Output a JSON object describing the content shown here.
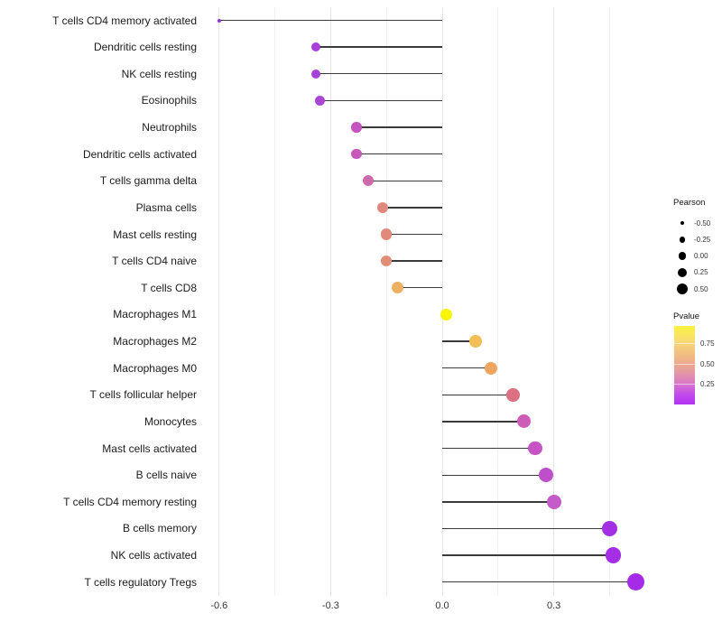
{
  "chart_data": {
    "type": "lollipop",
    "orientation": "horizontal",
    "title": "",
    "xlabel": "",
    "ylabel": "",
    "x_axis": {
      "tick_labels": [
        "-0.6",
        "-0.3",
        "0.0",
        "0.3"
      ],
      "tick_values": [
        -0.6,
        -0.3,
        0.0,
        0.3
      ],
      "xlim": [
        -0.72,
        0.6
      ]
    },
    "grid": "vertical major and minor, light gray on white",
    "points": [
      {
        "label": "T cells CD4 memory activated",
        "pearson": -0.6,
        "color": "#9232DB",
        "size": 4
      },
      {
        "label": "Dendritic cells resting",
        "pearson": -0.34,
        "color": "#A73FD9",
        "size": 10.5
      },
      {
        "label": "NK cells resting",
        "pearson": -0.34,
        "color": "#A73FD9",
        "size": 10.5
      },
      {
        "label": "Eosinophils",
        "pearson": -0.33,
        "color": "#A946D6",
        "size": 11
      },
      {
        "label": "Neutrophils",
        "pearson": -0.23,
        "color": "#C455BE",
        "size": 11.5
      },
      {
        "label": "Dendritic cells activated",
        "pearson": -0.23,
        "color": "#C75AB9",
        "size": 11.5
      },
      {
        "label": "T cells gamma delta",
        "pearson": -0.2,
        "color": "#CE69AB",
        "size": 12
      },
      {
        "label": "Plasma cells",
        "pearson": -0.16,
        "color": "#E1887D",
        "size": 12.5
      },
      {
        "label": "Mast cells resting",
        "pearson": -0.15,
        "color": "#E18A7C",
        "size": 12.5
      },
      {
        "label": "T cells CD4 naive",
        "pearson": -0.15,
        "color": "#E18C77",
        "size": 12.5
      },
      {
        "label": "T cells CD8",
        "pearson": -0.12,
        "color": "#EDAF64",
        "size": 13
      },
      {
        "label": "Macrophages M1",
        "pearson": 0.01,
        "color": "#F8F506",
        "size": 13
      },
      {
        "label": "Macrophages M2",
        "pearson": 0.09,
        "color": "#F2BE58",
        "size": 13.5
      },
      {
        "label": "Macrophages M0",
        "pearson": 0.13,
        "color": "#EDA55F",
        "size": 14
      },
      {
        "label": "T cells follicular helper",
        "pearson": 0.19,
        "color": "#DB7082",
        "size": 14.5
      },
      {
        "label": "Monocytes",
        "pearson": 0.22,
        "color": "#CC5CB6",
        "size": 15
      },
      {
        "label": "Mast cells activated",
        "pearson": 0.25,
        "color": "#C654C4",
        "size": 15.5
      },
      {
        "label": "B cells naive",
        "pearson": 0.28,
        "color": "#BF4ECB",
        "size": 16
      },
      {
        "label": "T cells CD4 memory resting",
        "pearson": 0.3,
        "color": "#C45BC9",
        "size": 16
      },
      {
        "label": "B cells memory",
        "pearson": 0.45,
        "color": "#A22FE3",
        "size": 17.5
      },
      {
        "label": "NK cells activated",
        "pearson": 0.46,
        "color": "#A42FE5",
        "size": 17.5
      },
      {
        "label": "T cells regulatory  Tregs",
        "pearson": 0.52,
        "color": "#A62BE8",
        "size": 19
      }
    ]
  },
  "legends": {
    "pearson": {
      "title": "Pearson",
      "dot_color": "#000000",
      "entries": [
        {
          "label": "-0.50",
          "diameter": 4.5
        },
        {
          "label": "-0.25",
          "diameter": 6.5
        },
        {
          "label": "0.00",
          "diameter": 8.5
        },
        {
          "label": "0.25",
          "diameter": 10.5
        },
        {
          "label": "0.50",
          "diameter": 12.5
        }
      ]
    },
    "pvalue": {
      "title": "Pvalue",
      "tick_labels": [
        "0.75",
        "0.50",
        "0.25"
      ],
      "gradient_top_to_bottom": [
        "#FCF33C",
        "#F7D976",
        "#F0B785",
        "#E59A9F",
        "#DA7BC4",
        "#C148EC",
        "#B232F4"
      ]
    }
  }
}
